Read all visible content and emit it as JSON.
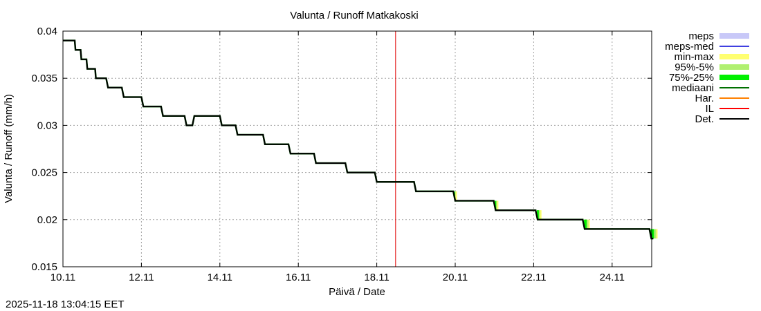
{
  "title": "Valunta / Runoff  Matkakoski",
  "timestamp": "2025-11-18 13:04:15 EET",
  "chart_data": {
    "type": "line",
    "title": "Valunta / Runoff  Matkakoski",
    "xlabel": "Päivä / Date",
    "ylabel": "Valunta / Runoff (mm/h)",
    "ylim": [
      0.015,
      0.04
    ],
    "xlim_days": [
      0,
      15.05
    ],
    "grid": true,
    "legend_position": "right",
    "x_ticks": [
      "10.11",
      "12.11",
      "14.11",
      "16.11",
      "18.11",
      "20.11",
      "22.11",
      "24.11"
    ],
    "y_ticks": [
      "0.015",
      "0.02",
      "0.025",
      "0.03",
      "0.035",
      "0.04"
    ],
    "now_line_day": 8.48,
    "legend": [
      {
        "label": "meps",
        "color": "#c8c8f8",
        "style": "band"
      },
      {
        "label": "meps-med",
        "color": "#4040e0",
        "style": "line"
      },
      {
        "label": "min-max",
        "color": "#ffff70",
        "style": "band"
      },
      {
        "label": "95%-5%",
        "color": "#b0f070",
        "style": "band"
      },
      {
        "label": "75%-25%",
        "color": "#00f000",
        "style": "band"
      },
      {
        "label": "mediaani",
        "color": "#007000",
        "style": "line"
      },
      {
        "label": "Har.",
        "color": "#ff8000",
        "style": "line"
      },
      {
        "label": "IL",
        "color": "#ff0000",
        "style": "line"
      },
      {
        "label": "Det.",
        "color": "#000000",
        "style": "line"
      }
    ],
    "series": [
      {
        "name": "Det.",
        "points": [
          [
            0,
            0.039
          ],
          [
            0.3,
            0.039
          ],
          [
            0.32,
            0.038
          ],
          [
            0.45,
            0.038
          ],
          [
            0.47,
            0.037
          ],
          [
            0.6,
            0.037
          ],
          [
            0.62,
            0.036
          ],
          [
            0.82,
            0.036
          ],
          [
            0.84,
            0.035
          ],
          [
            1.1,
            0.035
          ],
          [
            1.15,
            0.034
          ],
          [
            1.5,
            0.034
          ],
          [
            1.55,
            0.033
          ],
          [
            2.0,
            0.033
          ],
          [
            2.05,
            0.032
          ],
          [
            2.5,
            0.032
          ],
          [
            2.55,
            0.031
          ],
          [
            3.1,
            0.031
          ],
          [
            3.15,
            0.03
          ],
          [
            3.3,
            0.03
          ],
          [
            3.35,
            0.031
          ],
          [
            4.0,
            0.031
          ],
          [
            4.05,
            0.03
          ],
          [
            4.4,
            0.03
          ],
          [
            4.45,
            0.029
          ],
          [
            5.1,
            0.029
          ],
          [
            5.15,
            0.028
          ],
          [
            5.75,
            0.028
          ],
          [
            5.8,
            0.027
          ],
          [
            6.4,
            0.027
          ],
          [
            6.45,
            0.026
          ],
          [
            7.2,
            0.026
          ],
          [
            7.25,
            0.025
          ],
          [
            7.95,
            0.025
          ],
          [
            8.0,
            0.024
          ],
          [
            8.95,
            0.024
          ],
          [
            9.0,
            0.023
          ],
          [
            9.95,
            0.023
          ],
          [
            10.0,
            0.022
          ],
          [
            10.98,
            0.022
          ],
          [
            11.03,
            0.021
          ],
          [
            12.05,
            0.021
          ],
          [
            12.1,
            0.02
          ],
          [
            13.25,
            0.02
          ],
          [
            13.3,
            0.019
          ],
          [
            14.95,
            0.019
          ],
          [
            15.0,
            0.018
          ],
          [
            15.05,
            0.018
          ]
        ]
      }
    ]
  }
}
